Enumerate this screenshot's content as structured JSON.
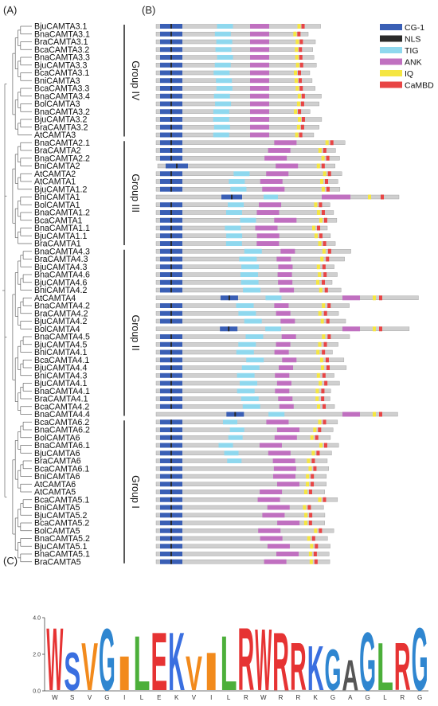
{
  "panels": {
    "a_label": "(A)",
    "b_label": "(B)",
    "c_label": "(C)"
  },
  "taxa": [
    "BjuCAMTA3.1",
    "BnaCAMTA3.1",
    "BraCAMTA3.1",
    "BcaCAMTA3.2",
    "BnaCAMTA3.3",
    "BjuCAMTA3.3",
    "BcaCAMTA3.1",
    "BniCAMTA3",
    "BcaCAMTA3.3",
    "BnaCAMTA3.4",
    "BolCAMTA3",
    "BnaCAMTA3.2",
    "BjuCAMTA3.2",
    "BraCAMTA3.2",
    "AtCAMTA3",
    "BnaCAMTA2.1",
    "BraCAMTA2",
    "BnaCAMTA2.2",
    "BniCAMTA2",
    "AtCAMTA2",
    "AtCAMTA1",
    "BjuCAMTA1.2",
    "BniCAMTA1",
    "BolCAMTA1",
    "BnaCAMTA1.2",
    "BcaCAMTA1",
    "BnaCAMTA1.1",
    "BjuCAMTA1.1",
    "BraCAMTA1",
    "BnaCAMTA4.3",
    "BraCAMTA4.3",
    "BjuCAMTA4.3",
    "BnaCAMTA4.6",
    "BjuCAMTA4.6",
    "BniCAMTA4.2",
    "AtCAMTA4",
    "BnaCAMTA4.2",
    "BraCAMTA4.2",
    "BjuCAMTA4.2",
    "BolCAMTA4",
    "BnaCAMTA4.5",
    "BjuCAMTA4.5",
    "BniCAMTA4.1",
    "BcaCAMTA4.1",
    "BjuCAMTA4.4",
    "BniCAMTA4.3",
    "BjuCAMTA4.1",
    "BnaCAMTA4.1",
    "BraCAMTA4.1",
    "BcaCAMTA4.2",
    "BnaCAMTA4.4",
    "BcaCAMTA6.2",
    "BnaCAMTA6.2",
    "BolCAMTA6",
    "BnaCAMTA6.1",
    "BjuCAMTA6",
    "BraCAMTA6",
    "BcaCAMTA6.1",
    "BniCAMTA6",
    "AtCAMTA6",
    "AtCAMTA5",
    "BcaCAMTA5.1",
    "BniCAMTA5",
    "BjuCAMTA5.2",
    "BcaCAMTA5.2",
    "BolCAMTA5",
    "BnaCAMTA5.2",
    "BjuCAMTA5.1",
    "BnaCAMTA5.1",
    "BraCAMTA5"
  ],
  "groups": [
    "Group IV",
    "Group III",
    "Group II",
    "Group I"
  ],
  "legend": [
    {
      "label": "CG-1",
      "color": "#3a5fb5"
    },
    {
      "label": "NLS",
      "color": "#2a2a2a"
    },
    {
      "label": "TIG",
      "color": "#8fd8ee"
    },
    {
      "label": "ANK",
      "color": "#c070c0"
    },
    {
      "label": "IQ",
      "color": "#f5e642"
    },
    {
      "label": "CaMBD",
      "color": "#e84545"
    }
  ],
  "logo": {
    "y_ticks": [
      "4.0",
      "2.0",
      "0.0"
    ],
    "positions": [
      "W",
      "S",
      "V",
      "G",
      "I",
      "L",
      "E",
      "K",
      "V",
      "I",
      "L",
      "R",
      "W",
      "R",
      "R",
      "K",
      "G",
      "A",
      "G",
      "L",
      "R",
      "G"
    ]
  }
}
